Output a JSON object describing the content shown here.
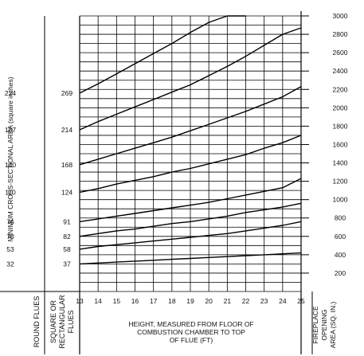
{
  "chart_data": {
    "type": "line",
    "title": "",
    "xlabel": "HEIGHT, MEASURED FROM FLOOR OF COMBUSTION CHAMBER TO TOP OF FLUE (FT)",
    "ylabel": "MINIMUM CROSS-SECTIONAL AREA (square inches)",
    "right_ylabel": "FIREPLACE OPENING AREA (SQ. IN.)",
    "round_flues_label": "ROUND FLUES",
    "rect_flues_label": "SQUARE OR RECTANGULAR FLUES",
    "x_ticks": [
      "13",
      "14",
      "15",
      "16",
      "17",
      "18",
      "19",
      "20",
      "21",
      "22",
      "23",
      "24",
      "25"
    ],
    "xlim": [
      13,
      25
    ],
    "ylim": [
      0,
      3000
    ],
    "y_ticks": [
      200,
      400,
      600,
      800,
      1000,
      1200,
      1400,
      1600,
      1800,
      2000,
      2200,
      2400,
      2600,
      2800,
      3000
    ],
    "round_flue_values": [
      {
        "label": "224",
        "y": 2160
      },
      {
        "label": "187",
        "y": 1760
      },
      {
        "label": "140",
        "y": 1380
      },
      {
        "label": "110",
        "y": 1080
      },
      {
        "label": "76",
        "y": 760
      },
      {
        "label": "70",
        "y": 600
      },
      {
        "label": "53",
        "y": 460
      },
      {
        "label": "32",
        "y": 300
      }
    ],
    "rect_flue_values": [
      {
        "label": "269",
        "y": 2160
      },
      {
        "label": "214",
        "y": 1760
      },
      {
        "label": "168",
        "y": 1380
      },
      {
        "label": "124",
        "y": 1080
      },
      {
        "label": "91",
        "y": 760
      },
      {
        "label": "82",
        "y": 600
      },
      {
        "label": "58",
        "y": 460
      },
      {
        "label": "37",
        "y": 300
      }
    ],
    "series": [
      {
        "x": [
          13,
          14,
          15,
          16,
          17,
          18,
          19,
          20,
          21,
          22
        ],
        "values": [
          2160,
          2260,
          2370,
          2480,
          2590,
          2700,
          2820,
          2930,
          3000,
          3000
        ]
      },
      {
        "x": [
          13,
          14,
          15,
          16,
          17,
          18,
          19,
          20,
          21,
          22,
          23,
          24,
          25
        ],
        "values": [
          1760,
          1850,
          1930,
          2010,
          2090,
          2170,
          2250,
          2350,
          2450,
          2560,
          2680,
          2800,
          2870
        ]
      },
      {
        "x": [
          13,
          14,
          15,
          16,
          17,
          18,
          19,
          20,
          21,
          22,
          23,
          24,
          25
        ],
        "values": [
          1380,
          1440,
          1500,
          1560,
          1620,
          1680,
          1750,
          1820,
          1890,
          1960,
          2040,
          2120,
          2230
        ]
      },
      {
        "x": [
          13,
          14,
          15,
          16,
          17,
          18,
          19,
          20,
          21,
          22,
          23,
          24,
          25
        ],
        "values": [
          1080,
          1120,
          1170,
          1210,
          1250,
          1300,
          1340,
          1390,
          1440,
          1490,
          1560,
          1620,
          1700
        ]
      },
      {
        "x": [
          13,
          14,
          15,
          16,
          17,
          18,
          19,
          20,
          21,
          22,
          23,
          24,
          25
        ],
        "values": [
          760,
          790,
          820,
          850,
          880,
          910,
          940,
          970,
          1010,
          1050,
          1090,
          1130,
          1230
        ]
      },
      {
        "x": [
          13,
          14,
          15,
          16,
          17,
          18,
          19,
          20,
          21,
          22,
          23,
          24,
          25
        ],
        "values": [
          600,
          630,
          660,
          680,
          710,
          740,
          760,
          790,
          820,
          860,
          890,
          920,
          960
        ]
      },
      {
        "x": [
          13,
          14,
          15,
          16,
          17,
          18,
          19,
          20,
          21,
          22,
          23,
          24,
          25
        ],
        "values": [
          460,
          490,
          510,
          530,
          550,
          570,
          590,
          610,
          630,
          660,
          690,
          720,
          760
        ]
      },
      {
        "x": [
          13,
          14,
          15,
          16,
          17,
          18,
          19,
          20,
          21,
          22,
          23,
          24,
          25
        ],
        "values": [
          300,
          310,
          320,
          330,
          340,
          350,
          360,
          370,
          380,
          390,
          400,
          410,
          420
        ]
      }
    ],
    "grid": true
  }
}
